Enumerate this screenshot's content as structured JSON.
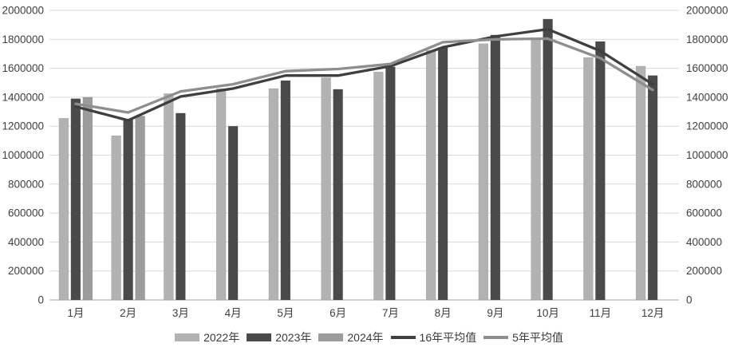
{
  "chart_data": {
    "type": "combo",
    "title": "",
    "xlabel": "",
    "ylabel": "",
    "categories": [
      "1月",
      "2月",
      "3月",
      "4月",
      "5月",
      "6月",
      "7月",
      "8月",
      "9月",
      "10月",
      "11月",
      "12月"
    ],
    "bar_series": [
      {
        "name": "2022年",
        "color": "#b2b2b2",
        "values": [
          1255000,
          1135000,
          1425000,
          1460000,
          1460000,
          1535000,
          1575000,
          1725000,
          1770000,
          1800000,
          1675000,
          1615000
        ]
      },
      {
        "name": "2023年",
        "color": "#4a4a4a",
        "values": [
          1390000,
          1250000,
          1290000,
          1200000,
          1515000,
          1455000,
          1610000,
          1745000,
          1830000,
          1940000,
          1785000,
          1550000
        ]
      },
      {
        "name": "2024年",
        "color": "#9c9c9c",
        "values": [
          1400000,
          1270000,
          null,
          null,
          null,
          null,
          null,
          null,
          null,
          null,
          null,
          null
        ]
      }
    ],
    "line_series": [
      {
        "name": "16年平均值",
        "color": "#3f3f3f",
        "values": [
          1335000,
          1240000,
          1405000,
          1460000,
          1550000,
          1550000,
          1615000,
          1745000,
          1820000,
          1870000,
          1720000,
          1490000
        ]
      },
      {
        "name": "5年平均值",
        "color": "#8e8e8e",
        "values": [
          1355000,
          1295000,
          1440000,
          1490000,
          1580000,
          1595000,
          1630000,
          1780000,
          1800000,
          1805000,
          1670000,
          1450000
        ]
      }
    ],
    "ylim": [
      0,
      2000000
    ],
    "yticks": [
      0,
      200000,
      400000,
      600000,
      800000,
      1000000,
      1200000,
      1400000,
      1600000,
      1800000,
      2000000
    ],
    "y_axis_sides": "both",
    "grid": "horizontal",
    "legend_position": "bottom",
    "colors": {
      "gridline": "#d9d9d9",
      "zero_axis": "#a6a6a6",
      "tick_text": "#404040"
    }
  }
}
